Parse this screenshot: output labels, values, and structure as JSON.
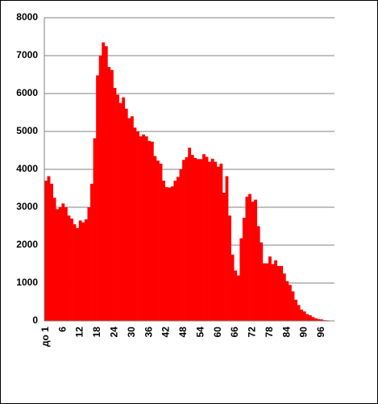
{
  "chart_data": {
    "type": "bar",
    "categories": [
      "до 1",
      null,
      null,
      null,
      null,
      null,
      "6",
      null,
      null,
      null,
      null,
      null,
      "12",
      null,
      null,
      null,
      null,
      null,
      "18",
      null,
      null,
      null,
      null,
      null,
      "24",
      null,
      null,
      null,
      null,
      null,
      "30",
      null,
      null,
      null,
      null,
      null,
      "36",
      null,
      null,
      null,
      null,
      null,
      "42",
      null,
      null,
      null,
      null,
      null,
      "48",
      null,
      null,
      null,
      null,
      null,
      "54",
      null,
      null,
      null,
      null,
      null,
      "60",
      null,
      null,
      null,
      null,
      null,
      "66",
      null,
      null,
      null,
      null,
      null,
      "72",
      null,
      null,
      null,
      null,
      null,
      "78",
      null,
      null,
      null,
      null,
      null,
      "84",
      null,
      null,
      null,
      null,
      null,
      "90",
      null,
      null,
      null,
      null,
      null,
      "96",
      null,
      null,
      null,
      null
    ],
    "values": [
      3700,
      3820,
      3620,
      3250,
      2950,
      3000,
      3100,
      3000,
      2780,
      2700,
      2550,
      2450,
      2650,
      2600,
      2680,
      3000,
      3620,
      4820,
      6480,
      7000,
      7350,
      7250,
      6700,
      6620,
      6150,
      5970,
      5750,
      5900,
      5600,
      5350,
      5400,
      5100,
      5000,
      4870,
      4920,
      4870,
      4750,
      4730,
      4350,
      4230,
      4150,
      3700,
      3530,
      3520,
      3550,
      3700,
      3800,
      4000,
      4250,
      4320,
      4570,
      4380,
      4300,
      4270,
      4270,
      4400,
      4330,
      4200,
      4280,
      4200,
      4070,
      4150,
      3380,
      3820,
      2780,
      1750,
      1330,
      1200,
      2180,
      2720,
      3280,
      3350,
      3150,
      3200,
      2500,
      2070,
      1520,
      1520,
      1700,
      1500,
      1600,
      1450,
      1450,
      1250,
      1050,
      950,
      780,
      560,
      420,
      300,
      250,
      180,
      150,
      100,
      70,
      50,
      40,
      20,
      15,
      10,
      10
    ],
    "color": "#ff0000",
    "ylim": [
      0,
      8000
    ],
    "yticks": [
      0,
      1000,
      2000,
      3000,
      4000,
      5000,
      6000,
      7000,
      8000
    ],
    "grid": true
  }
}
